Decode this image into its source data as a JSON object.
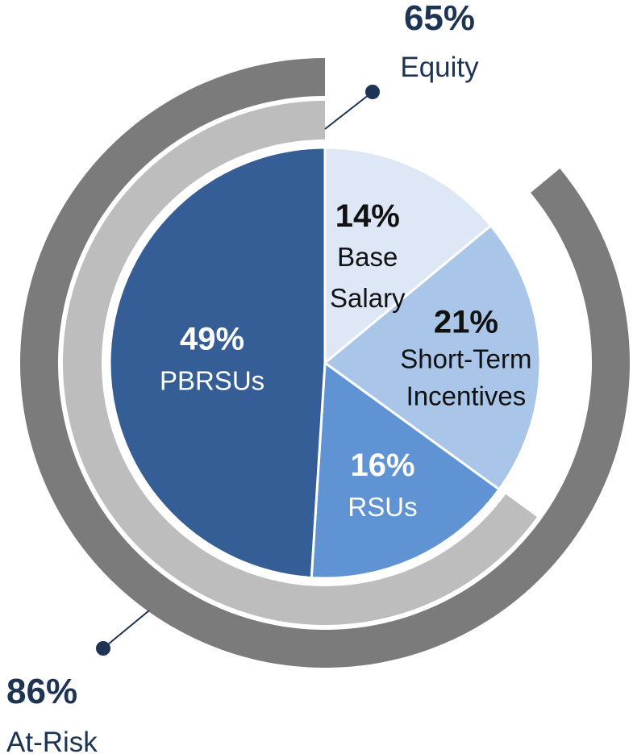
{
  "chart_data": {
    "type": "pie",
    "slices": [
      {
        "key": "base",
        "value": 14,
        "pct": "14%",
        "label_lines": [
          "Base",
          "Salary"
        ],
        "color": "#dde7f5",
        "text_color": "#111111"
      },
      {
        "key": "sti",
        "value": 21,
        "pct": "21%",
        "label_lines": [
          "Short-Term",
          "Incentives"
        ],
        "color": "#a9c6e8",
        "text_color": "#111111"
      },
      {
        "key": "rsus",
        "value": 16,
        "pct": "16%",
        "label_lines": [
          "RSUs"
        ],
        "color": "#5f93d3",
        "text_color": "#ffffff"
      },
      {
        "key": "pbrsus",
        "value": 49,
        "pct": "49%",
        "label_lines": [
          "PBRSUs"
        ],
        "color": "#345e95",
        "text_color": "#ffffff"
      }
    ],
    "rings": [
      {
        "key": "equity",
        "value": 65,
        "pct": "65%",
        "label": "Equity",
        "color": "#bdbdbd"
      },
      {
        "key": "at_risk",
        "value": 86,
        "pct": "86%",
        "label": "At-Risk",
        "color": "#7b7b7b"
      }
    ],
    "annotation_color": "#1e3454"
  }
}
